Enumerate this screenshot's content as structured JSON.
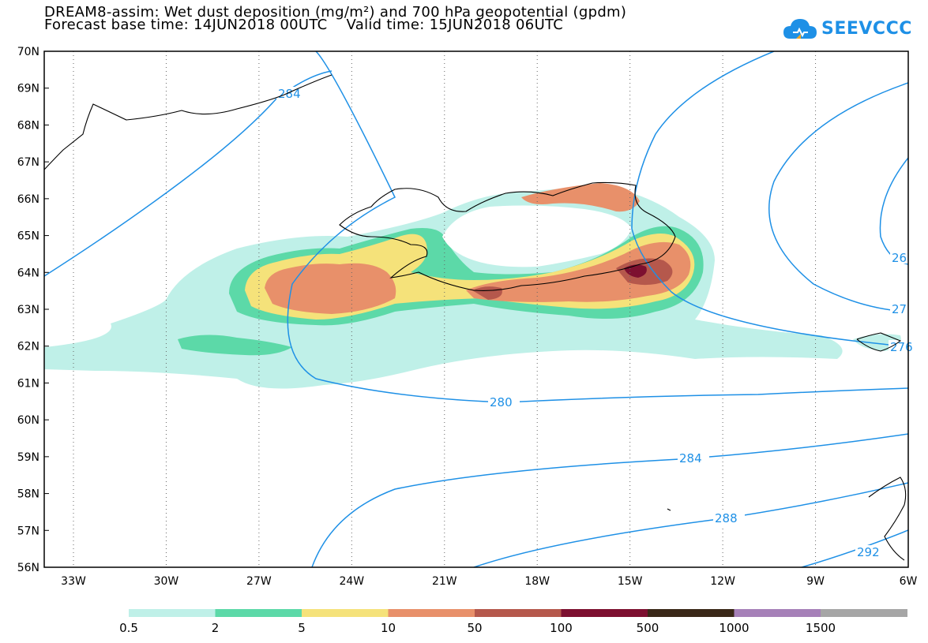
{
  "header": {
    "title_line1": "DREAM8-assim: Wet dust deposition (mg/m²) and 700 hPa geopotential (gpdm)",
    "title_line2": "Forecast base time: 14JUN2018 00UTC    Valid time: 15JUN2018 06UTC",
    "logo_text": "SEEVCCC"
  },
  "map": {
    "lat_labels": [
      "70N",
      "69N",
      "68N",
      "67N",
      "66N",
      "65N",
      "64N",
      "63N",
      "62N",
      "61N",
      "60N",
      "59N",
      "58N",
      "57N",
      "56N"
    ],
    "lon_labels": [
      "33W",
      "30W",
      "27W",
      "24W",
      "21W",
      "18W",
      "15W",
      "12W",
      "9W",
      "6W"
    ],
    "contour_labels": [
      "284",
      "280",
      "284",
      "288",
      "292",
      "276",
      "27",
      "26"
    ]
  },
  "legend": {
    "labels": [
      "0.5",
      "2",
      "5",
      "10",
      "50",
      "100",
      "500",
      "1000",
      "1500"
    ],
    "colors": [
      "#bff0e8",
      "#5cd9a8",
      "#f5e27a",
      "#e8906a",
      "#b5584c",
      "#7d1030",
      "#3a2818",
      "#a680b8",
      "#a6a6a6"
    ]
  },
  "colors": {
    "contour": "#1e90e6",
    "coast": "#000000"
  }
}
